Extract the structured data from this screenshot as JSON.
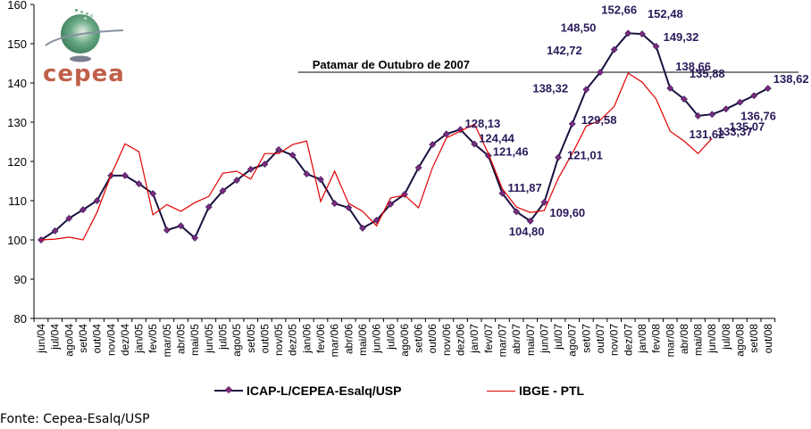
{
  "logo": {
    "text": "cepea"
  },
  "source": "Fonte: Cepea-Esalq/USP",
  "chart_data": {
    "type": "line",
    "title": "",
    "xlabel": "",
    "ylabel": "",
    "ylim": [
      80,
      160
    ],
    "yticks": [
      80,
      90,
      100,
      110,
      120,
      130,
      140,
      150,
      160
    ],
    "grid": false,
    "legend_position": "bottom",
    "categories": [
      "jun/04",
      "jul/04",
      "ago/04",
      "set/04",
      "out/04",
      "nov/04",
      "dez/04",
      "jan/05",
      "fev/05",
      "mar/05",
      "abr/05",
      "mai/05",
      "jun/05",
      "jul/05",
      "ago/05",
      "set/05",
      "out/05",
      "nov/05",
      "dez/05",
      "jan/06",
      "fev/06",
      "mar/06",
      "abr/06",
      "mai/06",
      "jun/06",
      "jul/06",
      "ago/06",
      "set/06",
      "out/06",
      "nov/06",
      "dez/06",
      "jan/07",
      "fev/07",
      "mar/07",
      "abr/07",
      "mai/07",
      "jun/07",
      "jul/07",
      "ago/07",
      "set/07",
      "out/07",
      "nov/07",
      "dez/07",
      "jan/08",
      "fev/08",
      "mar/08",
      "abr/08",
      "mai/08",
      "jun/08",
      "jul/08",
      "ago/08",
      "set/08",
      "out/08"
    ],
    "series": [
      {
        "name": "ICAP-L/CEPEA-Esalq/USP",
        "color": "#1a1040",
        "marker_color": "#7a2a7a",
        "values": [
          100.0,
          102.3,
          105.5,
          107.7,
          110.0,
          116.4,
          116.4,
          114.3,
          111.8,
          102.5,
          103.6,
          100.5,
          108.4,
          112.5,
          115.2,
          118.0,
          119.3,
          123.0,
          121.6,
          116.8,
          115.4,
          109.3,
          108.2,
          103.0,
          105.0,
          109.1,
          111.6,
          118.4,
          124.3,
          127.0,
          128.13,
          124.44,
          121.46,
          111.87,
          107.2,
          104.8,
          109.6,
          121.01,
          129.58,
          138.32,
          142.72,
          148.5,
          152.66,
          152.48,
          149.32,
          138.66,
          135.88,
          131.62,
          132.0,
          133.37,
          135.07,
          136.76,
          138.62
        ],
        "labels": {
          "30": "128,13",
          "31": "124,44",
          "32": "121,46",
          "33": "111,87",
          "35": "104,80",
          "36": "109,60",
          "37": "121,01",
          "38": "129,58",
          "39": "138,32",
          "40": "142,72",
          "41": "148,50",
          "42": "152,66",
          "43": "152,48",
          "44": "149,32",
          "45": "138,66",
          "46": "135,88",
          "47": "131,62",
          "49": "133,37",
          "50": "135,07",
          "51": "136,76",
          "52": "138,62"
        }
      },
      {
        "name": "IBGE - PTL",
        "color": "#e00000",
        "values": [
          100.0,
          100.2,
          100.7,
          100.0,
          107.0,
          116.5,
          124.5,
          122.5,
          106.4,
          109.0,
          107.3,
          109.5,
          111.1,
          117.0,
          117.5,
          115.5,
          122.0,
          122.0,
          124.3,
          125.2,
          109.8,
          117.5,
          109.3,
          107.3,
          103.6,
          110.7,
          111.4,
          108.2,
          118.4,
          126.0,
          127.7,
          129.5,
          122.0,
          113.0,
          108.4,
          107.0,
          107.5,
          115.7,
          122.0,
          129.0,
          130.5,
          134.0,
          142.5,
          140.2,
          135.9,
          127.7,
          125.2,
          122.0,
          125.9,
          null,
          null,
          null,
          null
        ]
      }
    ],
    "annotations": [
      {
        "type": "hline",
        "value": 142.72,
        "from_category": "dez/05",
        "text": "Patamar de Outubro de 2007"
      }
    ]
  }
}
